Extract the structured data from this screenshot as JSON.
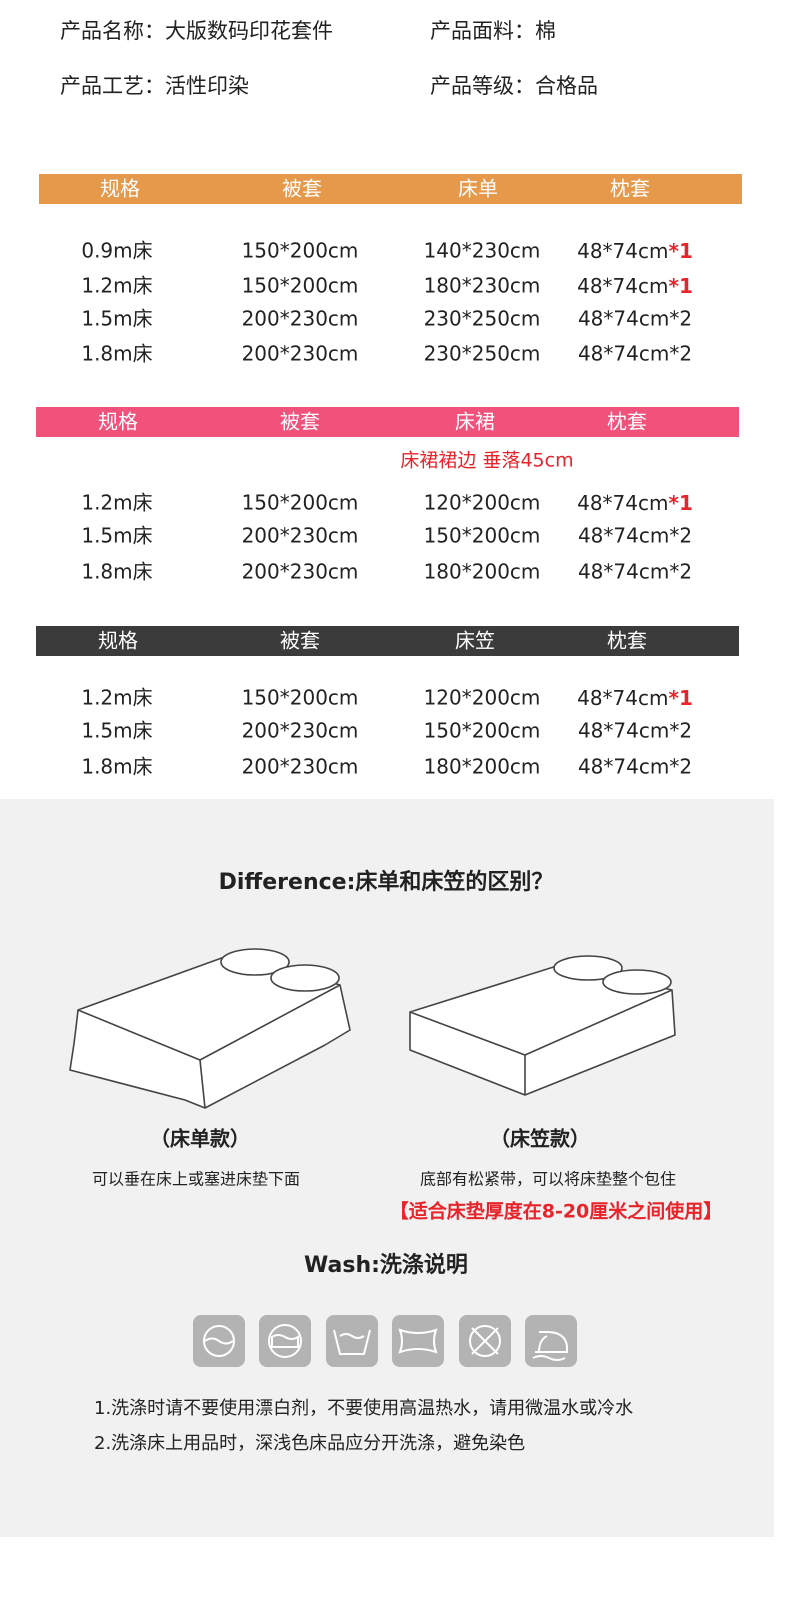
{
  "product_info": [
    "产品名称：大版数码印花套件",
    "产品面料：棉",
    "产品工艺：活性印染",
    "产品等级：合格品"
  ],
  "tables": [
    {
      "color": "#e6984b",
      "header": [
        "规格",
        "被套",
        "床单",
        "枕套"
      ],
      "rows": [
        [
          "0.9m床",
          "150*200cm",
          "140*230cm",
          {
            "text": "48*74cm",
            "emphasis": "*1"
          }
        ],
        [
          "1.2m床",
          "150*200cm",
          "180*230cm",
          {
            "text": "48*74cm",
            "emphasis": "*1"
          }
        ],
        [
          "1.5m床",
          "200*230cm",
          "230*250cm",
          "48*74cm*2"
        ],
        [
          "1.8m床",
          "200*230cm",
          "230*250cm",
          "48*74cm*2"
        ]
      ]
    },
    {
      "color": "#f0527c",
      "header": [
        "规格",
        "被套",
        "床裙",
        "枕套"
      ],
      "note": "床裙裙边 垂落45cm",
      "rows": [
        [
          "1.2m床",
          "150*200cm",
          "120*200cm",
          {
            "text": "48*74cm",
            "emphasis": "*1"
          }
        ],
        [
          "1.5m床",
          "200*230cm",
          "150*200cm",
          "48*74cm*2"
        ],
        [
          "1.8m床",
          "200*230cm",
          "180*200cm",
          "48*74cm*2"
        ]
      ]
    },
    {
      "color": "#3b3b3b",
      "header": [
        "规格",
        "被套",
        "床笠",
        "枕套"
      ],
      "rows": [
        [
          "1.2m床",
          "150*200cm",
          "120*200cm",
          {
            "text": "48*74cm",
            "emphasis": "*1"
          }
        ],
        [
          "1.5m床",
          "200*230cm",
          "150*200cm",
          "48*74cm*2"
        ],
        [
          "1.8m床",
          "200*230cm",
          "180*200cm",
          "48*74cm*2"
        ]
      ]
    }
  ],
  "difference": {
    "title": "Difference:床单和床笠的区别？",
    "items": [
      {
        "name": "（床单款）",
        "desc": "可以垂在床上或塞进床垫下面"
      },
      {
        "name": "（床笠款）",
        "desc": "底部有松紧带，可以将床垫整个包住",
        "note": "【适合床垫厚度在8-20厘米之间使用】"
      }
    ]
  },
  "wash": {
    "title": "Wash:洗涤说明",
    "notes": [
      "1.洗涤时请不要使用漂白剂，不要使用高温热水，请用微温水或冷水",
      "2.洗涤床上用品时，深浅色床品应分开洗涤，避免染色"
    ]
  }
}
